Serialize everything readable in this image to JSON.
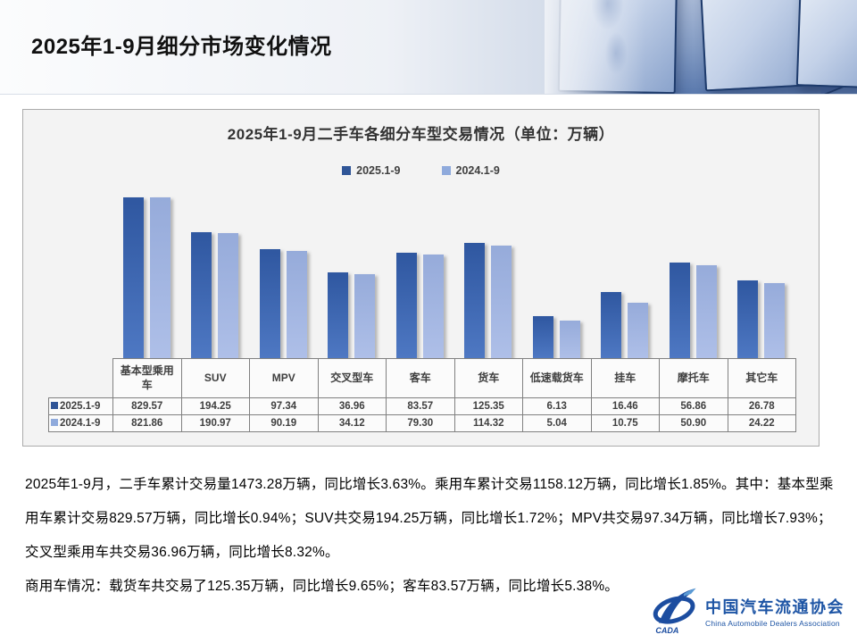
{
  "header": {
    "title": "2025年1-9月细分市场变化情况"
  },
  "chart_data": {
    "type": "bar",
    "title": "2025年1-9月二手车各细分车型交易情况（单位：万辆）",
    "unit": "万辆",
    "categories": [
      "基本型乘用车",
      "SUV",
      "MPV",
      "交叉型车",
      "客车",
      "货车",
      "低速载货车",
      "挂车",
      "摩托车",
      "其它车"
    ],
    "series": [
      {
        "name": "2025.1-9",
        "swatch": "#2F5597",
        "values": [
          829.57,
          194.25,
          97.34,
          36.96,
          83.57,
          125.35,
          6.13,
          16.46,
          56.86,
          26.78
        ]
      },
      {
        "name": "2024.1-9",
        "swatch": "#8FAADC",
        "values": [
          821.86,
          190.97,
          90.19,
          34.12,
          79.3,
          114.32,
          5.04,
          10.75,
          50.9,
          24.22
        ]
      }
    ],
    "value_axis_scale": "log",
    "grid": false,
    "legend_position": "top-center",
    "data_table_shown": true
  },
  "table": {
    "row_labels": [
      "2025.1-9",
      "2024.1-9"
    ],
    "rows": [
      [
        "829.57",
        "194.25",
        "97.34",
        "36.96",
        "83.57",
        "125.35",
        "6.13",
        "16.46",
        "56.86",
        "26.78"
      ],
      [
        "821.86",
        "190.97",
        "90.19",
        "34.12",
        "79.30",
        "114.32",
        "5.04",
        "10.75",
        "50.90",
        "24.22"
      ]
    ]
  },
  "paragraphs": [
    "2025年1-9月，二手车累计交易量1473.28万辆，同比增长3.63%。乘用车累计交易1158.12万辆，同比增长1.85%。其中：基本型乘用车累计交易829.57万辆，同比增长0.94%；SUV共交易194.25万辆，同比增长1.72%；MPV共交易97.34万辆，同比增长7.93%；交叉型乘用车共交易36.96万辆，同比增长8.32%。",
    "商用车情况：载货车共交易了125.35万辆，同比增长9.65%；客车83.57万辆，同比增长5.38%。"
  ],
  "logo": {
    "cn": "中国汽车流通协会",
    "en": "China Automobile Dealers Association",
    "abbr": "CADA",
    "color": "#1C4DA0"
  }
}
